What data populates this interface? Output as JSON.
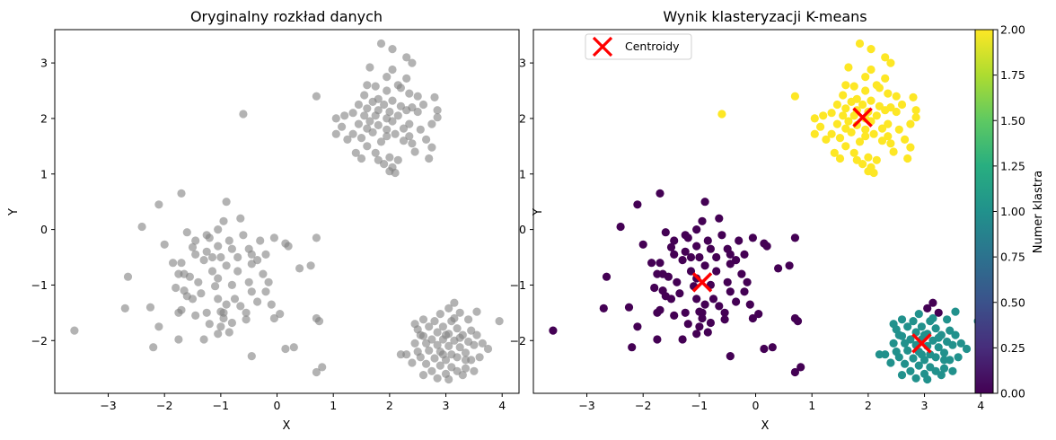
{
  "chart_data": [
    {
      "type": "scatter",
      "title": "Oryginalny rozkład danych",
      "xlabel": "X",
      "ylabel": "Y",
      "xlim": [
        -3.95,
        4.3
      ],
      "ylim": [
        -2.95,
        3.6
      ],
      "xticks": [
        -3,
        -2,
        -1,
        0,
        1,
        2,
        3,
        4
      ],
      "yticks": [
        -2,
        -1,
        0,
        1,
        2,
        3
      ],
      "xtick_labels": [
        "−3",
        "−2",
        "−1",
        "0",
        "1",
        "2",
        "3",
        "4"
      ],
      "ytick_labels": [
        "−2",
        "−1",
        "0",
        "1",
        "2",
        "3"
      ],
      "point_color": "#808080",
      "point_alpha": 0.6,
      "points_ref": "shared_points"
    },
    {
      "type": "scatter",
      "title": "Wynik klasteryzacji K-means",
      "xlabel": "X",
      "ylabel": "Y",
      "xlim": [
        -3.95,
        4.3
      ],
      "ylim": [
        -2.95,
        3.6
      ],
      "xticks": [
        -3,
        -2,
        -1,
        0,
        1,
        2,
        3,
        4
      ],
      "yticks": [
        -2,
        -1,
        0,
        1,
        2,
        3
      ],
      "xtick_labels": [
        "−3",
        "−2",
        "−1",
        "0",
        "1",
        "2",
        "3",
        "4"
      ],
      "ytick_labels": [
        "−2",
        "−1",
        "0",
        "1",
        "2",
        "3"
      ],
      "colormap": "viridis",
      "cluster_colors": [
        "#440154",
        "#21918c",
        "#fde725"
      ],
      "legend": {
        "label": "Centroidy",
        "location": "upper left"
      },
      "centroids": [
        {
          "x": -0.95,
          "y": -0.95,
          "cluster": 0
        },
        {
          "x": 2.95,
          "y": -2.05,
          "cluster": 1
        },
        {
          "x": 1.9,
          "y": 2.02,
          "cluster": 2
        }
      ],
      "centroid_color": "#ff0000",
      "colorbar": {
        "label": "Numer klastra",
        "range": [
          0,
          2
        ],
        "ticks": [
          0.0,
          0.25,
          0.5,
          0.75,
          1.0,
          1.25,
          1.5,
          1.75,
          2.0
        ],
        "tick_labels": [
          "0.00",
          "0.25",
          "0.50",
          "0.75",
          "1.00",
          "1.25",
          "1.50",
          "1.75",
          "2.00"
        ]
      },
      "points_ref": "shared_points"
    }
  ],
  "shared_points": [
    [
      1.85,
      3.35
    ],
    [
      2.05,
      3.25
    ],
    [
      2.3,
      3.1
    ],
    [
      2.4,
      3.0
    ],
    [
      1.65,
      2.92
    ],
    [
      2.05,
      2.88
    ],
    [
      1.95,
      2.75
    ],
    [
      2.3,
      2.72
    ],
    [
      2.15,
      2.6
    ],
    [
      1.75,
      2.58
    ],
    [
      1.95,
      2.5
    ],
    [
      1.55,
      2.42
    ],
    [
      2.35,
      2.45
    ],
    [
      2.5,
      2.4
    ],
    [
      2.8,
      2.38
    ],
    [
      1.8,
      2.35
    ],
    [
      2.05,
      2.32
    ],
    [
      1.7,
      2.3
    ],
    [
      1.45,
      2.25
    ],
    [
      1.9,
      2.25
    ],
    [
      2.2,
      2.22
    ],
    [
      2.4,
      2.2
    ],
    [
      2.6,
      2.25
    ],
    [
      1.6,
      2.18
    ],
    [
      1.8,
      2.15
    ],
    [
      2.0,
      2.12
    ],
    [
      2.3,
      2.15
    ],
    [
      2.5,
      2.12
    ],
    [
      1.35,
      2.1
    ],
    [
      1.55,
      2.05
    ],
    [
      1.75,
      2.05
    ],
    [
      1.95,
      2.0
    ],
    [
      2.15,
      2.05
    ],
    [
      2.85,
      2.15
    ],
    [
      2.85,
      2.02
    ],
    [
      1.05,
      2.0
    ],
    [
      1.2,
      2.05
    ],
    [
      1.65,
      1.95
    ],
    [
      2.05,
      1.95
    ],
    [
      2.35,
      1.9
    ],
    [
      1.45,
      1.9
    ],
    [
      1.8,
      1.88
    ],
    [
      2.25,
      1.82
    ],
    [
      2.55,
      1.8
    ],
    [
      2.75,
      1.9
    ],
    [
      1.15,
      1.85
    ],
    [
      1.6,
      1.82
    ],
    [
      1.95,
      1.8
    ],
    [
      2.1,
      1.72
    ],
    [
      1.7,
      1.75
    ],
    [
      1.35,
      1.72
    ],
    [
      1.5,
      1.65
    ],
    [
      1.95,
      1.68
    ],
    [
      2.35,
      1.68
    ],
    [
      1.05,
      1.72
    ],
    [
      1.25,
      1.62
    ],
    [
      1.85,
      1.58
    ],
    [
      2.25,
      1.6
    ],
    [
      2.4,
      1.55
    ],
    [
      2.65,
      1.62
    ],
    [
      2.75,
      1.48
    ],
    [
      1.6,
      1.5
    ],
    [
      2.45,
      1.4
    ],
    [
      1.4,
      1.38
    ],
    [
      1.75,
      1.38
    ],
    [
      2.0,
      1.3
    ],
    [
      1.5,
      1.28
    ],
    [
      1.8,
      1.25
    ],
    [
      2.15,
      1.25
    ],
    [
      2.7,
      1.28
    ],
    [
      2.0,
      1.05
    ],
    [
      2.1,
      1.02
    ],
    [
      2.05,
      1.12
    ],
    [
      1.9,
      1.18
    ],
    [
      2.2,
      2.55
    ],
    [
      1.6,
      2.6
    ],
    [
      0.7,
      2.4
    ],
    [
      -0.6,
      2.08
    ],
    [
      -0.9,
      0.5
    ],
    [
      -1.7,
      0.65
    ],
    [
      -2.1,
      0.45
    ],
    [
      -2.4,
      0.05
    ],
    [
      -0.95,
      0.15
    ],
    [
      -0.65,
      0.2
    ],
    [
      -1.05,
      0.0
    ],
    [
      -1.25,
      -0.1
    ],
    [
      -1.45,
      -0.2
    ],
    [
      -1.6,
      -0.05
    ],
    [
      -2.0,
      -0.27
    ],
    [
      -1.5,
      -0.32
    ],
    [
      -1.2,
      -0.15
    ],
    [
      -0.85,
      -0.2
    ],
    [
      -0.6,
      -0.1
    ],
    [
      -0.3,
      -0.2
    ],
    [
      -0.05,
      -0.15
    ],
    [
      0.15,
      -0.25
    ],
    [
      -0.5,
      -0.35
    ],
    [
      -0.8,
      -0.35
    ],
    [
      -1.05,
      -0.3
    ],
    [
      -1.25,
      -0.4
    ],
    [
      -1.45,
      -0.45
    ],
    [
      -1.7,
      -0.6
    ],
    [
      -1.85,
      -0.6
    ],
    [
      -1.65,
      -0.8
    ],
    [
      -1.3,
      -0.55
    ],
    [
      -1.0,
      -0.5
    ],
    [
      -0.7,
      -0.5
    ],
    [
      -0.45,
      -0.45
    ],
    [
      -0.2,
      -0.45
    ],
    [
      -0.9,
      -0.65
    ],
    [
      -1.15,
      -0.75
    ],
    [
      -1.55,
      -0.85
    ],
    [
      -1.75,
      -0.8
    ],
    [
      -1.4,
      -0.95
    ],
    [
      -1.05,
      -0.88
    ],
    [
      -0.7,
      -0.75
    ],
    [
      -0.45,
      -0.62
    ],
    [
      -0.25,
      -0.8
    ],
    [
      -0.15,
      -0.95
    ],
    [
      -0.5,
      -0.95
    ],
    [
      -0.8,
      -1.0
    ],
    [
      -1.1,
      -1.02
    ],
    [
      -1.35,
      -1.15
    ],
    [
      -1.65,
      -1.1
    ],
    [
      -1.8,
      -1.05
    ],
    [
      -1.6,
      -1.2
    ],
    [
      -1.05,
      -1.25
    ],
    [
      -0.75,
      -1.25
    ],
    [
      -0.45,
      -1.12
    ],
    [
      -0.2,
      -1.12
    ],
    [
      -0.1,
      -1.35
    ],
    [
      -0.35,
      -1.3
    ],
    [
      -0.65,
      -1.38
    ],
    [
      -0.95,
      -1.5
    ],
    [
      -1.25,
      -1.5
    ],
    [
      -1.7,
      -1.45
    ],
    [
      -2.25,
      -1.4
    ],
    [
      -2.7,
      -1.42
    ],
    [
      -1.45,
      -1.55
    ],
    [
      -0.55,
      -1.5
    ],
    [
      -0.95,
      -1.6
    ],
    [
      -1.2,
      -1.7
    ],
    [
      -1.0,
      -1.75
    ],
    [
      -0.8,
      -1.68
    ],
    [
      -0.55,
      -1.62
    ],
    [
      0.05,
      -1.52
    ],
    [
      -0.05,
      -1.6
    ],
    [
      -0.85,
      -1.85
    ],
    [
      -1.05,
      -1.88
    ],
    [
      -1.3,
      -1.98
    ],
    [
      -1.75,
      -1.98
    ],
    [
      -2.1,
      -1.75
    ],
    [
      -2.2,
      -2.12
    ],
    [
      -1.0,
      -1.48
    ],
    [
      -0.9,
      -1.35
    ],
    [
      0.15,
      -2.15
    ],
    [
      0.3,
      -2.12
    ],
    [
      -0.45,
      -2.28
    ],
    [
      0.7,
      -1.6
    ],
    [
      0.75,
      -1.65
    ],
    [
      0.6,
      -0.65
    ],
    [
      0.7,
      -0.15
    ],
    [
      0.4,
      -0.7
    ],
    [
      0.2,
      -0.3
    ],
    [
      -2.65,
      -0.85
    ],
    [
      -3.6,
      -1.82
    ],
    [
      -1.75,
      -1.5
    ],
    [
      -1.5,
      -1.25
    ],
    [
      -0.35,
      -0.55
    ],
    [
      -1.15,
      -0.5
    ],
    [
      0.7,
      -2.57
    ],
    [
      0.8,
      -2.48
    ],
    [
      3.15,
      -1.32
    ],
    [
      3.05,
      -1.42
    ],
    [
      3.25,
      -1.5
    ],
    [
      2.9,
      -1.52
    ],
    [
      3.55,
      -1.48
    ],
    [
      3.95,
      -1.65
    ],
    [
      2.6,
      -1.62
    ],
    [
      3.1,
      -1.65
    ],
    [
      3.4,
      -1.62
    ],
    [
      2.95,
      -1.75
    ],
    [
      2.7,
      -1.75
    ],
    [
      3.2,
      -1.78
    ],
    [
      3.45,
      -1.82
    ],
    [
      2.5,
      -1.8
    ],
    [
      2.85,
      -1.85
    ],
    [
      3.05,
      -1.88
    ],
    [
      3.3,
      -1.9
    ],
    [
      3.55,
      -1.9
    ],
    [
      2.6,
      -1.92
    ],
    [
      2.75,
      -1.98
    ],
    [
      2.95,
      -1.98
    ],
    [
      3.15,
      -2.0
    ],
    [
      3.4,
      -2.02
    ],
    [
      2.45,
      -2.05
    ],
    [
      2.65,
      -2.05
    ],
    [
      2.85,
      -2.08
    ],
    [
      3.05,
      -2.1
    ],
    [
      3.25,
      -2.12
    ],
    [
      3.5,
      -2.08
    ],
    [
      2.5,
      -2.2
    ],
    [
      2.7,
      -2.18
    ],
    [
      2.9,
      -2.2
    ],
    [
      3.1,
      -2.25
    ],
    [
      3.35,
      -2.22
    ],
    [
      2.3,
      -2.25
    ],
    [
      2.55,
      -2.3
    ],
    [
      2.8,
      -2.32
    ],
    [
      3.0,
      -2.35
    ],
    [
      3.2,
      -2.3
    ],
    [
      3.45,
      -2.35
    ],
    [
      2.65,
      -2.42
    ],
    [
      2.9,
      -2.45
    ],
    [
      3.1,
      -2.48
    ],
    [
      3.35,
      -2.5
    ],
    [
      2.75,
      -2.55
    ],
    [
      3.0,
      -2.6
    ],
    [
      3.2,
      -2.55
    ],
    [
      2.6,
      -2.62
    ],
    [
      2.85,
      -2.68
    ],
    [
      3.05,
      -2.7
    ],
    [
      3.6,
      -2.3
    ],
    [
      3.65,
      -2.05
    ],
    [
      2.4,
      -2.4
    ],
    [
      3.3,
      -2.62
    ],
    [
      2.55,
      -1.9
    ],
    [
      3.15,
      -1.6
    ],
    [
      3.75,
      -2.15
    ],
    [
      2.2,
      -2.25
    ],
    [
      2.95,
      -2.25
    ],
    [
      3.25,
      -1.95
    ],
    [
      2.8,
      -1.65
    ],
    [
      3.5,
      -2.55
    ],
    [
      2.45,
      -1.7
    ],
    [
      3.0,
      -1.9
    ],
    [
      3.35,
      -2.35
    ]
  ],
  "shared_labels": [
    2,
    2,
    2,
    2,
    2,
    2,
    2,
    2,
    2,
    2,
    2,
    2,
    2,
    2,
    2,
    2,
    2,
    2,
    2,
    2,
    2,
    2,
    2,
    2,
    2,
    2,
    2,
    2,
    2,
    2,
    2,
    2,
    2,
    2,
    2,
    2,
    2,
    2,
    2,
    2,
    2,
    2,
    2,
    2,
    2,
    2,
    2,
    2,
    2,
    2,
    2,
    2,
    2,
    2,
    2,
    2,
    2,
    2,
    2,
    2,
    2,
    2,
    2,
    2,
    2,
    2,
    2,
    2,
    2,
    2,
    2,
    2,
    2,
    2,
    2,
    2,
    2,
    2,
    0,
    0,
    0,
    0,
    0,
    0,
    0,
    0,
    0,
    0,
    0,
    0,
    0,
    0,
    0,
    0,
    0,
    0,
    0,
    0,
    0,
    0,
    0,
    0,
    0,
    0,
    0,
    0,
    0,
    0,
    0,
    0,
    0,
    0,
    0,
    0,
    0,
    0,
    0,
    0,
    0,
    0,
    0,
    0,
    0,
    0,
    0,
    0,
    0,
    0,
    0,
    0,
    0,
    0,
    0,
    0,
    0,
    0,
    0,
    0,
    0,
    0,
    0,
    0,
    0,
    0,
    0,
    0,
    0,
    0,
    0,
    0,
    0,
    0,
    0,
    0,
    0,
    0,
    0,
    0,
    0,
    0,
    0,
    0,
    0,
    0,
    0,
    0,
    0,
    0,
    0,
    0,
    0,
    0,
    0,
    0,
    0,
    1,
    1,
    1,
    1,
    1,
    1,
    1,
    1,
    1,
    1,
    1,
    1,
    1,
    1,
    1,
    1,
    1,
    1,
    1,
    1,
    1,
    1,
    1,
    1,
    1,
    1,
    1,
    1,
    1,
    1,
    1,
    1,
    1,
    1,
    1,
    1,
    1,
    1,
    1,
    1,
    1,
    1,
    1,
    1,
    1,
    1,
    1,
    1,
    1,
    1,
    1,
    1,
    1,
    1,
    1,
    1,
    1,
    1,
    1,
    1,
    1,
    1,
    1,
    1,
    1,
    1
  ]
}
